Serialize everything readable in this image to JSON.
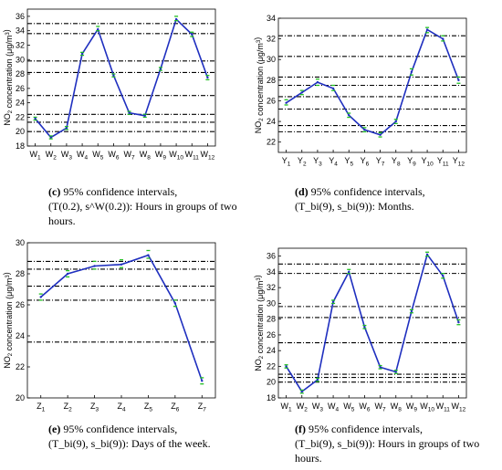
{
  "chart_data": [
    {
      "panel": "c",
      "type": "line",
      "ylabel": "NO2 concentration (μg/m3)",
      "ylim": [
        18,
        37
      ],
      "yticks": [
        18,
        20,
        22,
        24,
        26,
        28,
        30,
        32,
        34,
        36
      ],
      "categories": [
        "W1",
        "W2",
        "W3",
        "W4",
        "W5",
        "W6",
        "W7",
        "W8",
        "W9",
        "W10",
        "W11",
        "W12"
      ],
      "series": [
        {
          "values": [
            21.8,
            19.2,
            20.5,
            30.8,
            34.2,
            27.8,
            22.6,
            22.2,
            28.7,
            35.6,
            33.5,
            27.5
          ]
        }
      ],
      "interval_upper": [
        22.0,
        19.4,
        20.7,
        31.0,
        34.6,
        28.0,
        22.8,
        22.4,
        28.9,
        36.0,
        33.8,
        27.8
      ],
      "interval_lower": [
        21.6,
        19.0,
        20.3,
        30.6,
        34.0,
        27.6,
        22.4,
        22.0,
        28.5,
        35.4,
        33.2,
        27.2
      ],
      "reference_lines": [
        20.0,
        21.3,
        22.4,
        25.0,
        28.2,
        29.8,
        33.6,
        35.0
      ],
      "grid": false,
      "caption_bold": "(c)",
      "caption_lines": [
        "95% confidence intervals,",
        "(T(0.2), s^W(0.2)): Hours in groups of two",
        "hours."
      ]
    },
    {
      "panel": "d",
      "type": "line",
      "ylabel": "NO2 concentration (μg/m3)",
      "ylim": [
        21,
        34
      ],
      "yticks": [
        22,
        24,
        26,
        28,
        30,
        32,
        34
      ],
      "categories": [
        "Y1",
        "Y2",
        "Y3",
        "Y4",
        "Y5",
        "Y6",
        "Y7",
        "Y8",
        "Y9",
        "Y10",
        "Y11",
        "Y12"
      ],
      "series": [
        {
          "values": [
            25.8,
            26.8,
            27.8,
            27.2,
            24.6,
            23.2,
            22.7,
            24.0,
            28.8,
            32.9,
            32.0,
            28.0
          ]
        }
      ],
      "interval_upper": [
        26.1,
        27.0,
        28.1,
        27.5,
        24.8,
        23.4,
        22.9,
        24.2,
        29.1,
        33.1,
        32.3,
        28.3
      ],
      "interval_lower": [
        25.6,
        26.6,
        27.5,
        27.0,
        24.4,
        23.0,
        22.5,
        23.8,
        28.5,
        32.6,
        31.8,
        27.7
      ],
      "reference_lines": [
        23.0,
        23.6,
        25.2,
        26.4,
        27.5,
        28.3,
        30.3,
        32.3
      ],
      "grid": false,
      "caption_bold": "(d)",
      "caption_lines": [
        "95% confidence intervals,",
        "(T_bi(9), s_bi(9)): Months."
      ]
    },
    {
      "panel": "e",
      "type": "line",
      "ylabel": "NO2 concentration (μg/m3)",
      "ylim": [
        20,
        30
      ],
      "yticks": [
        20,
        22,
        24,
        26,
        28,
        30
      ],
      "categories": [
        "Z1",
        "Z2",
        "Z3",
        "Z4",
        "Z5",
        "Z6",
        "Z7"
      ],
      "series": [
        {
          "values": [
            26.5,
            28.0,
            28.5,
            28.6,
            29.2,
            26.1,
            21.1
          ]
        }
      ],
      "interval_upper": [
        26.7,
        28.2,
        28.8,
        28.9,
        29.5,
        26.3,
        21.3
      ],
      "interval_lower": [
        26.3,
        27.8,
        28.3,
        28.4,
        29.0,
        25.9,
        20.9
      ],
      "reference_lines": [
        23.6,
        26.3,
        27.2,
        28.3,
        28.8
      ],
      "grid": false,
      "caption_bold": "(e)",
      "caption_lines": [
        "95% confidence intervals,",
        "(T_bi(9), s_bi(9)): Days of the week."
      ]
    },
    {
      "panel": "f",
      "type": "line",
      "ylabel": "NO2 concentration (μg/m3)",
      "ylim": [
        18,
        37
      ],
      "yticks": [
        18,
        20,
        22,
        24,
        26,
        28,
        30,
        32,
        34,
        36
      ],
      "categories": [
        "W1",
        "W2",
        "W3",
        "W4",
        "W5",
        "W6",
        "W7",
        "W8",
        "W9",
        "W10",
        "W11",
        "W12"
      ],
      "series": [
        {
          "values": [
            22.0,
            18.8,
            20.3,
            30.2,
            34.0,
            27.0,
            21.9,
            21.3,
            29.0,
            36.2,
            33.5,
            27.6
          ]
        }
      ],
      "interval_upper": [
        22.2,
        19.0,
        20.5,
        30.4,
        34.3,
        27.2,
        22.1,
        21.5,
        29.2,
        36.5,
        33.8,
        27.9
      ],
      "interval_lower": [
        21.8,
        18.6,
        20.1,
        30.0,
        33.8,
        26.8,
        21.7,
        21.1,
        28.8,
        36.0,
        33.2,
        27.3
      ],
      "reference_lines": [
        20.0,
        20.6,
        21.0,
        25.0,
        28.2,
        29.6,
        33.8,
        35.0
      ],
      "grid": false,
      "caption_bold": "(f)",
      "caption_lines": [
        "95% confidence intervals,",
        "(T_bi(9), s_bi(9)): Hours in groups of two",
        "hours."
      ]
    }
  ],
  "colors": {
    "line": "#1f2fbf",
    "interval_marker": "#1fbf1f",
    "reference_line": "#000000",
    "axis": "#000000"
  }
}
